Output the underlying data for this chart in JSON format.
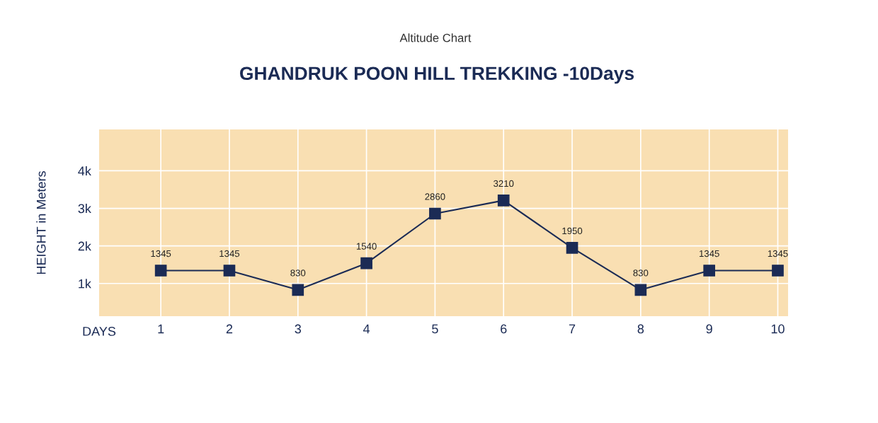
{
  "chart_data": {
    "type": "line",
    "subtitle": "Altitude Chart",
    "title": "GHANDRUK POON HILL TREKKING -10Days",
    "xlabel": "DAYS",
    "ylabel": "HEIGHT in Meters",
    "categories": [
      "1",
      "2",
      "3",
      "4",
      "5",
      "6",
      "7",
      "8",
      "9",
      "10"
    ],
    "series": [
      {
        "color": "#1b2b55",
        "values": [
          1345,
          1345,
          830,
          1540,
          2860,
          3210,
          1950,
          830,
          1345,
          1345
        ]
      }
    ],
    "ylim": [
      130,
      5100
    ],
    "yticks": [
      {
        "value": 1000,
        "label": "1k"
      },
      {
        "value": 2000,
        "label": "2k"
      },
      {
        "value": 3000,
        "label": "3k"
      },
      {
        "value": 4000,
        "label": "4k"
      }
    ],
    "grid": true,
    "marker": "square",
    "line_style": "solid",
    "data_labels": true
  }
}
